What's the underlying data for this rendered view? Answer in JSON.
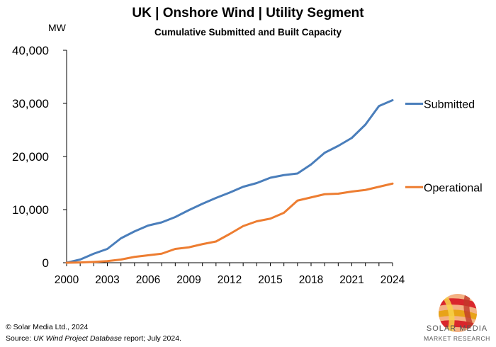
{
  "header": {
    "title": "UK | Onshore Wind | Utility Segment",
    "subtitle": "Cumulative Submitted and Built Capacity"
  },
  "chart_data": {
    "type": "line",
    "title": "UK | Onshore Wind | Utility Segment",
    "subtitle": "Cumulative Submitted and Built Capacity",
    "ylabel": "MW",
    "xlabel": "",
    "ylim": [
      0,
      40000
    ],
    "xlim": [
      2000,
      2024
    ],
    "yticks": [
      0,
      10000,
      20000,
      30000,
      40000
    ],
    "ytick_labels": [
      "0",
      "10,000",
      "20,000",
      "30,000",
      "40,000"
    ],
    "xticks": [
      2000,
      2003,
      2006,
      2009,
      2012,
      2015,
      2018,
      2021,
      2024
    ],
    "xtick_labels": [
      "2000",
      "2003",
      "2006",
      "2009",
      "2012",
      "2015",
      "2018",
      "2021",
      "2024"
    ],
    "grid": false,
    "legend": "direct labels at right end of lines",
    "x": [
      2000,
      2001,
      2002,
      2003,
      2004,
      2005,
      2006,
      2007,
      2008,
      2009,
      2010,
      2011,
      2012,
      2013,
      2014,
      2015,
      2016,
      2017,
      2018,
      2019,
      2020,
      2021,
      2022,
      2023,
      2024
    ],
    "series": [
      {
        "name": "Submitted",
        "color": "#4a7ebb",
        "values": [
          0,
          600,
          1700,
          2600,
          4600,
          5900,
          7000,
          7600,
          8600,
          9900,
          11100,
          12200,
          13200,
          14300,
          15000,
          16000,
          16500,
          16800,
          18500,
          20700,
          22000,
          23500,
          26000,
          29500,
          30600
        ]
      },
      {
        "name": "Operational",
        "color": "#ed7d31",
        "values": [
          0,
          50,
          150,
          300,
          600,
          1100,
          1400,
          1700,
          2600,
          2900,
          3500,
          4000,
          5400,
          6900,
          7800,
          8300,
          9400,
          11700,
          12300,
          12900,
          13000,
          13400,
          13700,
          14300,
          14900
        ]
      }
    ]
  },
  "footer": {
    "copyright": "© Solar Media Ltd., 2024",
    "source_prefix": "Source: ",
    "source_italic": "UK Wind Project Database",
    "source_suffix": " report; July 2024."
  },
  "logo": {
    "line1": "SOLAR MEDIA",
    "line2": "MARKET RESEARCH"
  }
}
